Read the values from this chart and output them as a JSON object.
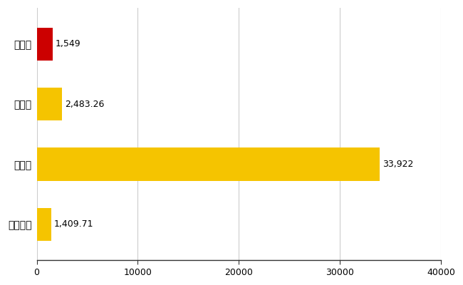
{
  "categories": [
    "日進市",
    "県平均",
    "県最大",
    "全国平均"
  ],
  "values": [
    1549,
    2483.26,
    33922,
    1409.71
  ],
  "bar_colors": [
    "#cc0000",
    "#f5c400",
    "#f5c400",
    "#f5c400"
  ],
  "value_labels": [
    "1,549",
    "2,483.26",
    "33,922",
    "1,409.71"
  ],
  "xlim": [
    0,
    40000
  ],
  "xticks": [
    0,
    10000,
    20000,
    30000,
    40000
  ],
  "xtick_labels": [
    "0",
    "10000",
    "20000",
    "30000",
    "40000"
  ],
  "background_color": "#ffffff",
  "grid_color": "#cccccc",
  "bar_height": 0.55,
  "label_fontsize": 10,
  "tick_fontsize": 9,
  "value_fontsize": 9
}
